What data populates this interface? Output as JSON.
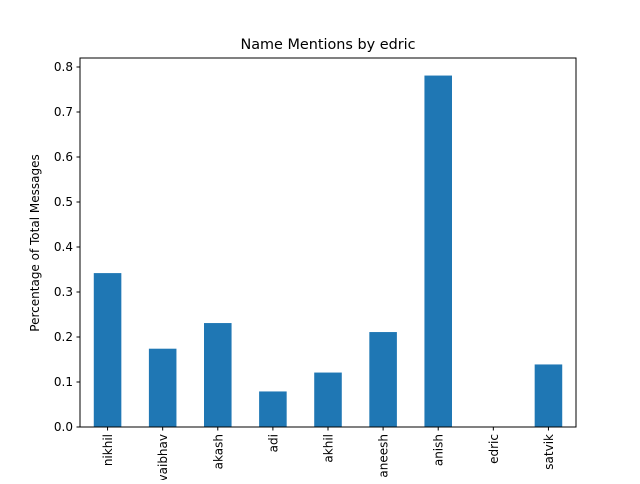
{
  "chart_data": {
    "type": "bar",
    "title": "Name Mentions by edric",
    "xlabel": "",
    "ylabel": "Percentage of Total Messages",
    "categories": [
      "nikhil",
      "vaibhav",
      "akash",
      "adi",
      "akhil",
      "aneesh",
      "anish",
      "edric",
      "satvik"
    ],
    "values": [
      0.342,
      0.174,
      0.231,
      0.079,
      0.121,
      0.211,
      0.781,
      0.0,
      0.139
    ],
    "ylim": [
      0,
      0.82
    ],
    "yticks": [
      0.0,
      0.1,
      0.2,
      0.3,
      0.4,
      0.5,
      0.6,
      0.7,
      0.8
    ],
    "ytick_labels": [
      "0.0",
      "0.1",
      "0.2",
      "0.3",
      "0.4",
      "0.5",
      "0.6",
      "0.7",
      "0.8"
    ],
    "bar_color": "#1f77b4",
    "grid": false,
    "legend": "none"
  }
}
